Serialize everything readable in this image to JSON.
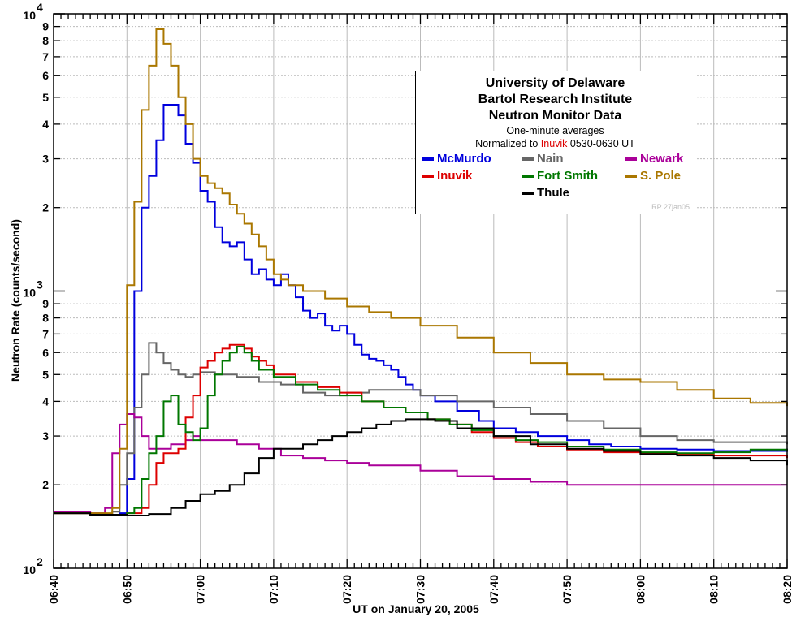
{
  "chart_data": {
    "type": "line",
    "title": "",
    "xlabel": "UT on January 20, 2005",
    "ylabel": "Neutron Rate (counts/second)",
    "ylog": true,
    "ylim": [
      100,
      10000
    ],
    "xlim_minutes": [
      0,
      100
    ],
    "x_ticks": [
      "06:40",
      "06:50",
      "07:00",
      "07:10",
      "07:20",
      "07:30",
      "07:40",
      "07:50",
      "08:00",
      "08:10",
      "08:20"
    ],
    "y_major_ticks": [
      {
        "value": 100,
        "base": "10",
        "exp": "2"
      },
      {
        "value": 1000,
        "base": "10",
        "exp": "3"
      },
      {
        "value": 10000,
        "base": "10",
        "exp": "4"
      }
    ],
    "y_minor_ticks": [
      2,
      3,
      4,
      5,
      6,
      7,
      8,
      9
    ],
    "grid": true,
    "legend": {
      "title_lines": [
        "University of Delaware",
        "Bartol Research Institute",
        "Neutron Monitor Data"
      ],
      "sub1": "One-minute averages",
      "sub2_pre": "Normalized to ",
      "sub2_hl": "Inuvik",
      "sub2_post": " 0530-0630 UT",
      "credit": "RP 27jan05",
      "highlight_color": "#dd0000"
    },
    "series": [
      {
        "name": "McMurdo",
        "color": "#0000dd",
        "points": [
          [
            0,
            158
          ],
          [
            5,
            155
          ],
          [
            9,
            158
          ],
          [
            10,
            210
          ],
          [
            11,
            1000
          ],
          [
            12,
            2000
          ],
          [
            13,
            2600
          ],
          [
            14,
            3500
          ],
          [
            15,
            4700
          ],
          [
            16,
            4700
          ],
          [
            17,
            4300
          ],
          [
            18,
            3400
          ],
          [
            19,
            2900
          ],
          [
            20,
            2300
          ],
          [
            21,
            2100
          ],
          [
            22,
            1700
          ],
          [
            23,
            1500
          ],
          [
            24,
            1450
          ],
          [
            25,
            1500
          ],
          [
            26,
            1300
          ],
          [
            27,
            1150
          ],
          [
            28,
            1200
          ],
          [
            29,
            1100
          ],
          [
            30,
            1050
          ],
          [
            31,
            1150
          ],
          [
            32,
            1050
          ],
          [
            33,
            950
          ],
          [
            34,
            850
          ],
          [
            35,
            800
          ],
          [
            36,
            830
          ],
          [
            37,
            750
          ],
          [
            38,
            720
          ],
          [
            39,
            750
          ],
          [
            40,
            700
          ],
          [
            41,
            640
          ],
          [
            42,
            590
          ],
          [
            43,
            570
          ],
          [
            44,
            560
          ],
          [
            45,
            540
          ],
          [
            46,
            520
          ],
          [
            47,
            490
          ],
          [
            48,
            460
          ],
          [
            49,
            440
          ],
          [
            50,
            420
          ],
          [
            52,
            400
          ],
          [
            55,
            370
          ],
          [
            58,
            340
          ],
          [
            60,
            320
          ],
          [
            63,
            310
          ],
          [
            66,
            300
          ],
          [
            70,
            290
          ],
          [
            73,
            280
          ],
          [
            76,
            275
          ],
          [
            80,
            270
          ],
          [
            85,
            268
          ],
          [
            90,
            265
          ],
          [
            95,
            265
          ],
          [
            100,
            270
          ]
        ]
      },
      {
        "name": "Nain",
        "color": "#666666",
        "points": [
          [
            0,
            158
          ],
          [
            5,
            155
          ],
          [
            8,
            160
          ],
          [
            9,
            200
          ],
          [
            10,
            260
          ],
          [
            11,
            380
          ],
          [
            12,
            500
          ],
          [
            13,
            650
          ],
          [
            14,
            600
          ],
          [
            15,
            550
          ],
          [
            16,
            520
          ],
          [
            17,
            500
          ],
          [
            18,
            490
          ],
          [
            19,
            500
          ],
          [
            20,
            510
          ],
          [
            22,
            500
          ],
          [
            25,
            490
          ],
          [
            28,
            470
          ],
          [
            31,
            460
          ],
          [
            34,
            430
          ],
          [
            37,
            420
          ],
          [
            40,
            430
          ],
          [
            43,
            440
          ],
          [
            46,
            440
          ],
          [
            50,
            420
          ],
          [
            55,
            400
          ],
          [
            60,
            380
          ],
          [
            65,
            360
          ],
          [
            70,
            340
          ],
          [
            75,
            320
          ],
          [
            80,
            300
          ],
          [
            85,
            290
          ],
          [
            90,
            285
          ],
          [
            95,
            285
          ],
          [
            100,
            280
          ]
        ]
      },
      {
        "name": "Newark",
        "color": "#aa0099",
        "points": [
          [
            0,
            160
          ],
          [
            5,
            158
          ],
          [
            7,
            165
          ],
          [
            8,
            260
          ],
          [
            9,
            330
          ],
          [
            10,
            360
          ],
          [
            11,
            350
          ],
          [
            12,
            300
          ],
          [
            13,
            270
          ],
          [
            14,
            270
          ],
          [
            15,
            270
          ],
          [
            16,
            280
          ],
          [
            17,
            280
          ],
          [
            18,
            290
          ],
          [
            19,
            300
          ],
          [
            20,
            290
          ],
          [
            22,
            290
          ],
          [
            25,
            280
          ],
          [
            28,
            270
          ],
          [
            31,
            255
          ],
          [
            34,
            250
          ],
          [
            37,
            245
          ],
          [
            40,
            240
          ],
          [
            43,
            235
          ],
          [
            46,
            235
          ],
          [
            50,
            225
          ],
          [
            55,
            215
          ],
          [
            60,
            210
          ],
          [
            65,
            205
          ],
          [
            70,
            200
          ],
          [
            75,
            200
          ],
          [
            80,
            200
          ],
          [
            85,
            200
          ],
          [
            90,
            200
          ],
          [
            95,
            200
          ],
          [
            100,
            200
          ]
        ]
      },
      {
        "name": "Inuvik",
        "color": "#dd0000",
        "points": [
          [
            0,
            158
          ],
          [
            5,
            156
          ],
          [
            10,
            158
          ],
          [
            12,
            165
          ],
          [
            13,
            200
          ],
          [
            14,
            240
          ],
          [
            15,
            260
          ],
          [
            16,
            260
          ],
          [
            17,
            270
          ],
          [
            18,
            350
          ],
          [
            19,
            420
          ],
          [
            20,
            530
          ],
          [
            21,
            560
          ],
          [
            22,
            600
          ],
          [
            23,
            620
          ],
          [
            24,
            640
          ],
          [
            25,
            640
          ],
          [
            26,
            620
          ],
          [
            27,
            580
          ],
          [
            28,
            560
          ],
          [
            29,
            540
          ],
          [
            30,
            500
          ],
          [
            33,
            470
          ],
          [
            36,
            450
          ],
          [
            39,
            430
          ],
          [
            42,
            400
          ],
          [
            45,
            380
          ],
          [
            48,
            365
          ],
          [
            51,
            345
          ],
          [
            54,
            330
          ],
          [
            57,
            310
          ],
          [
            60,
            295
          ],
          [
            63,
            285
          ],
          [
            66,
            275
          ],
          [
            70,
            268
          ],
          [
            75,
            262
          ],
          [
            80,
            260
          ],
          [
            85,
            258
          ],
          [
            90,
            255
          ],
          [
            95,
            255
          ],
          [
            100,
            250
          ]
        ]
      },
      {
        "name": "Fort Smith",
        "color": "#007700",
        "points": [
          [
            0,
            158
          ],
          [
            5,
            156
          ],
          [
            10,
            158
          ],
          [
            11,
            165
          ],
          [
            12,
            210
          ],
          [
            13,
            260
          ],
          [
            14,
            300
          ],
          [
            15,
            400
          ],
          [
            16,
            420
          ],
          [
            17,
            330
          ],
          [
            18,
            310
          ],
          [
            19,
            290
          ],
          [
            20,
            320
          ],
          [
            21,
            420
          ],
          [
            22,
            500
          ],
          [
            23,
            560
          ],
          [
            24,
            600
          ],
          [
            25,
            630
          ],
          [
            26,
            600
          ],
          [
            27,
            560
          ],
          [
            28,
            520
          ],
          [
            30,
            490
          ],
          [
            33,
            460
          ],
          [
            36,
            440
          ],
          [
            39,
            420
          ],
          [
            42,
            400
          ],
          [
            45,
            380
          ],
          [
            48,
            365
          ],
          [
            51,
            345
          ],
          [
            54,
            330
          ],
          [
            57,
            315
          ],
          [
            60,
            300
          ],
          [
            63,
            290
          ],
          [
            66,
            285
          ],
          [
            70,
            275
          ],
          [
            75,
            268
          ],
          [
            80,
            262
          ],
          [
            85,
            260
          ],
          [
            90,
            262
          ],
          [
            95,
            268
          ],
          [
            100,
            265
          ]
        ]
      },
      {
        "name": "S. Pole",
        "color": "#aa7700",
        "points": [
          [
            0,
            158
          ],
          [
            5,
            158
          ],
          [
            8,
            165
          ],
          [
            9,
            270
          ],
          [
            10,
            1050
          ],
          [
            11,
            2100
          ],
          [
            12,
            4500
          ],
          [
            13,
            6500
          ],
          [
            14,
            8800
          ],
          [
            15,
            7800
          ],
          [
            16,
            6500
          ],
          [
            17,
            5000
          ],
          [
            18,
            4000
          ],
          [
            19,
            3000
          ],
          [
            20,
            2600
          ],
          [
            21,
            2450
          ],
          [
            22,
            2350
          ],
          [
            23,
            2250
          ],
          [
            24,
            2050
          ],
          [
            25,
            1900
          ],
          [
            26,
            1750
          ],
          [
            27,
            1600
          ],
          [
            28,
            1450
          ],
          [
            29,
            1300
          ],
          [
            30,
            1150
          ],
          [
            31,
            1100
          ],
          [
            32,
            1050
          ],
          [
            34,
            1000
          ],
          [
            37,
            940
          ],
          [
            40,
            880
          ],
          [
            43,
            840
          ],
          [
            46,
            800
          ],
          [
            50,
            750
          ],
          [
            55,
            680
          ],
          [
            60,
            600
          ],
          [
            65,
            550
          ],
          [
            70,
            500
          ],
          [
            75,
            480
          ],
          [
            80,
            470
          ],
          [
            85,
            440
          ],
          [
            90,
            410
          ],
          [
            95,
            395
          ],
          [
            100,
            385
          ]
        ]
      },
      {
        "name": "Thule",
        "color": "#000000",
        "points": [
          [
            0,
            158
          ],
          [
            5,
            156
          ],
          [
            10,
            155
          ],
          [
            13,
            157
          ],
          [
            16,
            165
          ],
          [
            18,
            175
          ],
          [
            20,
            185
          ],
          [
            22,
            190
          ],
          [
            24,
            200
          ],
          [
            26,
            220
          ],
          [
            28,
            250
          ],
          [
            30,
            270
          ],
          [
            32,
            270
          ],
          [
            34,
            280
          ],
          [
            36,
            290
          ],
          [
            38,
            300
          ],
          [
            40,
            310
          ],
          [
            42,
            320
          ],
          [
            44,
            330
          ],
          [
            46,
            340
          ],
          [
            48,
            345
          ],
          [
            50,
            345
          ],
          [
            52,
            340
          ],
          [
            55,
            320
          ],
          [
            60,
            300
          ],
          [
            65,
            280
          ],
          [
            70,
            270
          ],
          [
            75,
            265
          ],
          [
            80,
            258
          ],
          [
            85,
            255
          ],
          [
            90,
            250
          ],
          [
            95,
            245
          ],
          [
            100,
            235
          ]
        ]
      }
    ]
  }
}
